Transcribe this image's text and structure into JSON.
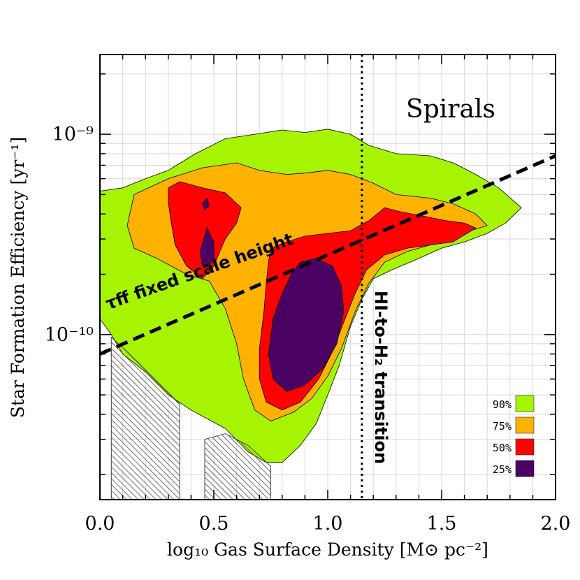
{
  "chart_data": {
    "type": "contour",
    "title": "Spirals",
    "xlabel": "log₁₀ Gas Surface Density [M⊙ pc⁻²]",
    "ylabel": "Star Formation Efficiency [yr⁻¹]",
    "xlim": [
      0.0,
      2.0
    ],
    "ylim": [
      1.5e-11,
      2.5e-09
    ],
    "y_scale": "log",
    "grid": true,
    "x_tick_labels": [
      "0.0",
      "0.5",
      "1.0",
      "1.5",
      "2.0"
    ],
    "y_tick_labels": [
      "10⁻¹⁰",
      "10⁻⁹"
    ],
    "legend_position": "bottom-right",
    "levels": [
      {
        "name": "90%",
        "color": "#a7f402"
      },
      {
        "name": "75%",
        "color": "#ffb200"
      },
      {
        "name": "50%",
        "color": "#ff0000"
      },
      {
        "name": "25%",
        "color": "#4b0064"
      }
    ],
    "contours": [
      {
        "level": "90%",
        "points": [
          [
            0.0,
            5.2e-10
          ],
          [
            0.1,
            5.4e-10
          ],
          [
            0.2,
            6e-10
          ],
          [
            0.3,
            6.6e-10
          ],
          [
            0.42,
            8e-10
          ],
          [
            0.55,
            9.5e-10
          ],
          [
            0.68,
            1e-09
          ],
          [
            0.8,
            1.05e-09
          ],
          [
            0.9,
            1.02e-09
          ],
          [
            1.0,
            1.06e-09
          ],
          [
            1.1,
            1e-09
          ],
          [
            1.18,
            8.8e-10
          ],
          [
            1.3,
            8e-10
          ],
          [
            1.45,
            7.8e-10
          ],
          [
            1.55,
            7.2e-10
          ],
          [
            1.65,
            6.3e-10
          ],
          [
            1.75,
            5.4e-10
          ],
          [
            1.85,
            4.3e-10
          ],
          [
            1.78,
            3.6e-10
          ],
          [
            1.7,
            3.2e-10
          ],
          [
            1.6,
            2.9e-10
          ],
          [
            1.5,
            2.7e-10
          ],
          [
            1.4,
            2.4e-10
          ],
          [
            1.28,
            2.1e-10
          ],
          [
            1.2,
            1.9e-10
          ],
          [
            1.15,
            1.5e-10
          ],
          [
            1.1,
            1.1e-10
          ],
          [
            1.05,
            7e-11
          ],
          [
            1.0,
            5e-11
          ],
          [
            0.95,
            3.6e-11
          ],
          [
            0.88,
            2.8e-11
          ],
          [
            0.8,
            2.3e-11
          ],
          [
            0.73,
            2.3e-11
          ],
          [
            0.65,
            2.6e-11
          ],
          [
            0.55,
            3.4e-11
          ],
          [
            0.4,
            4.2e-11
          ],
          [
            0.3,
            5e-11
          ],
          [
            0.2,
            6.5e-11
          ],
          [
            0.1,
            8e-11
          ],
          [
            0.05,
            1e-10
          ],
          [
            0.0,
            1.2e-10
          ]
        ]
      },
      {
        "level": "75%",
        "points": [
          [
            0.15,
            5e-10
          ],
          [
            0.3,
            6e-10
          ],
          [
            0.45,
            6.8e-10
          ],
          [
            0.6,
            7.2e-10
          ],
          [
            0.7,
            6.6e-10
          ],
          [
            0.82,
            6.3e-10
          ],
          [
            0.9,
            6.4e-10
          ],
          [
            1.0,
            6.6e-10
          ],
          [
            1.1,
            6.3e-10
          ],
          [
            1.2,
            5.7e-10
          ],
          [
            1.3,
            5e-10
          ],
          [
            1.45,
            4.8e-10
          ],
          [
            1.55,
            4.5e-10
          ],
          [
            1.65,
            4e-10
          ],
          [
            1.7,
            3.5e-10
          ],
          [
            1.55,
            3.1e-10
          ],
          [
            1.45,
            2.8e-10
          ],
          [
            1.35,
            2.6e-10
          ],
          [
            1.25,
            2.3e-10
          ],
          [
            1.18,
            1.8e-10
          ],
          [
            1.12,
            1.3e-10
          ],
          [
            1.06,
            8.5e-11
          ],
          [
            1.0,
            6.2e-11
          ],
          [
            0.93,
            4.8e-11
          ],
          [
            0.85,
            4.1e-11
          ],
          [
            0.75,
            3.7e-11
          ],
          [
            0.68,
            4.2e-11
          ],
          [
            0.63,
            6e-11
          ],
          [
            0.6,
            9e-11
          ],
          [
            0.55,
            1.35e-10
          ],
          [
            0.48,
            1.85e-10
          ],
          [
            0.38,
            2e-10
          ],
          [
            0.25,
            2.4e-10
          ],
          [
            0.15,
            2.7e-10
          ],
          [
            0.12,
            3.5e-10
          ]
        ]
      },
      {
        "level": "50%",
        "points": [
          [
            0.3,
            5.4e-10
          ],
          [
            0.35,
            5.8e-10
          ],
          [
            0.45,
            5.4e-10
          ],
          [
            0.55,
            5.1e-10
          ],
          [
            0.62,
            4.3e-10
          ],
          [
            0.6,
            3.6e-10
          ],
          [
            0.55,
            3e-10
          ],
          [
            0.5,
            2.2e-10
          ],
          [
            0.45,
            1.9e-10
          ],
          [
            0.38,
            2.2e-10
          ],
          [
            0.33,
            2.8e-10
          ],
          [
            0.31,
            3.8e-10
          ],
          [
            0.3,
            4.6e-10
          ]
        ]
      },
      {
        "level": "50%",
        "points": [
          [
            0.75,
            2.7e-10
          ],
          [
            0.82,
            2.9e-10
          ],
          [
            0.9,
            3.1e-10
          ],
          [
            1.0,
            3.2e-10
          ],
          [
            1.1,
            3.3e-10
          ],
          [
            1.18,
            3.7e-10
          ],
          [
            1.25,
            4.3e-10
          ],
          [
            1.32,
            4.1e-10
          ],
          [
            1.42,
            3.9e-10
          ],
          [
            1.52,
            3.7e-10
          ],
          [
            1.6,
            3.6e-10
          ],
          [
            1.65,
            3.4e-10
          ],
          [
            1.55,
            2.9e-10
          ],
          [
            1.45,
            2.8e-10
          ],
          [
            1.35,
            2.7e-10
          ],
          [
            1.25,
            2.5e-10
          ],
          [
            1.17,
            2.1e-10
          ],
          [
            1.12,
            1.6e-10
          ],
          [
            1.07,
            1.15e-10
          ],
          [
            1.02,
            8.2e-11
          ],
          [
            0.96,
            6e-11
          ],
          [
            0.88,
            4.6e-11
          ],
          [
            0.8,
            4.2e-11
          ],
          [
            0.73,
            4.6e-11
          ],
          [
            0.7,
            6e-11
          ],
          [
            0.7,
            8.5e-11
          ],
          [
            0.72,
            1.3e-10
          ],
          [
            0.73,
            1.8e-10
          ],
          [
            0.74,
            2.3e-10
          ]
        ]
      },
      {
        "level": "25%",
        "points": [
          [
            0.47,
            4.8e-10
          ],
          [
            0.48,
            4.4e-10
          ],
          [
            0.46,
            4.2e-10
          ],
          [
            0.45,
            4.5e-10
          ]
        ]
      },
      {
        "level": "25%",
        "points": [
          [
            0.47,
            3.4e-10
          ],
          [
            0.5,
            2.9e-10
          ],
          [
            0.5,
            2.3e-10
          ],
          [
            0.45,
            2.2e-10
          ],
          [
            0.44,
            2.6e-10
          ]
        ]
      },
      {
        "level": "25%",
        "points": [
          [
            0.88,
            2.3e-10
          ],
          [
            0.95,
            2.4e-10
          ],
          [
            1.02,
            2.2e-10
          ],
          [
            1.06,
            1.75e-10
          ],
          [
            1.07,
            1.3e-10
          ],
          [
            1.04,
            9e-11
          ],
          [
            0.98,
            6.8e-11
          ],
          [
            0.9,
            5.6e-11
          ],
          [
            0.82,
            5.2e-11
          ],
          [
            0.76,
            6e-11
          ],
          [
            0.74,
            8e-11
          ],
          [
            0.76,
            1.2e-10
          ],
          [
            0.8,
            1.6e-10
          ],
          [
            0.84,
            2e-10
          ]
        ]
      }
    ],
    "lines": [
      {
        "label": "τff fixed scale height",
        "style": "dashed",
        "points": [
          [
            0.0,
            8e-11
          ],
          [
            2.0,
            7.8e-10
          ]
        ]
      },
      {
        "label": "HI-to-H₂ transition",
        "style": "dotted",
        "x": 1.15
      }
    ],
    "hatched_regions": [
      {
        "points": [
          [
            0.05,
            9.7e-11
          ],
          [
            0.12,
            8.2e-11
          ],
          [
            0.35,
            4.5e-11
          ],
          [
            0.35,
            1.5e-11
          ],
          [
            0.05,
            1.5e-11
          ]
        ]
      },
      {
        "points": [
          [
            0.46,
            3e-11
          ],
          [
            0.55,
            3.2e-11
          ],
          [
            0.65,
            2.8e-11
          ],
          [
            0.75,
            2.2e-11
          ],
          [
            0.75,
            1.5e-11
          ],
          [
            0.46,
            1.5e-11
          ]
        ]
      }
    ],
    "annotations": [
      {
        "text": "τff fixed scale height"
      },
      {
        "text": "HI-to-H₂ transition"
      }
    ]
  }
}
